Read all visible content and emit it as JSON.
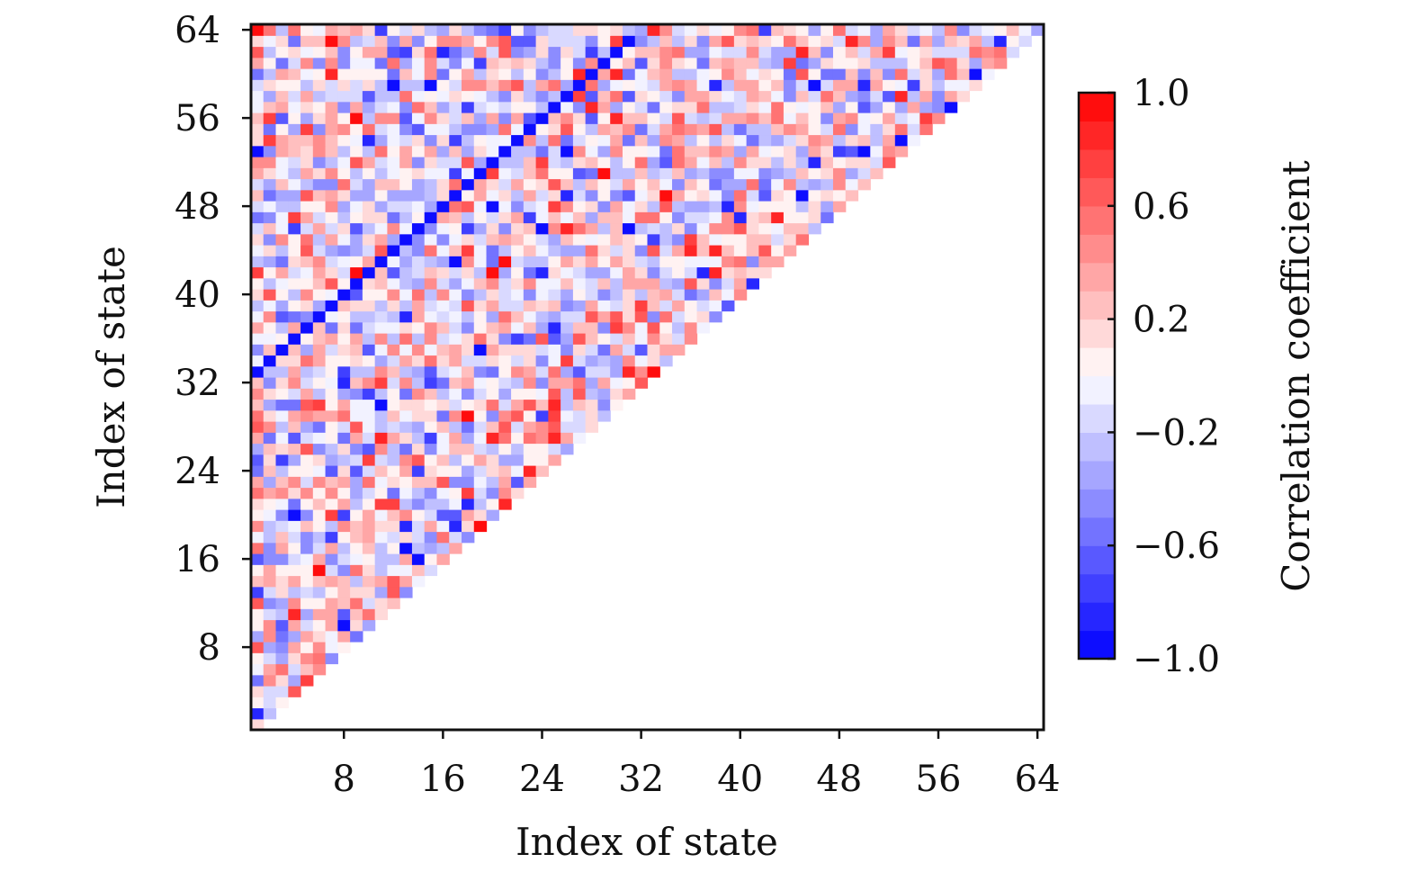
{
  "chart_data": {
    "type": "heatmap",
    "title": "",
    "xlabel": "Index of state",
    "ylabel": "Index of state",
    "n": 64,
    "xlim": [
      0.5,
      64.5
    ],
    "ylim": [
      0.5,
      64.5
    ],
    "x_ticks": [
      8,
      16,
      24,
      32,
      40,
      48,
      56,
      64
    ],
    "y_ticks": [
      8,
      16,
      24,
      32,
      40,
      48,
      56,
      64
    ],
    "x_tick_labels": [
      "8",
      "16",
      "24",
      "32",
      "40",
      "48",
      "56",
      "64"
    ],
    "y_tick_labels": [
      "8",
      "16",
      "24",
      "32",
      "40",
      "48",
      "56",
      "64"
    ],
    "mask": "upper-left triangle shown (row index ≥ column index)",
    "diagonal": {
      "description": "strong negative correlation line",
      "from": [
        1,
        33
      ],
      "to": [
        31,
        63
      ],
      "value": -1.0
    },
    "value_seed": 20240611,
    "colorbar": {
      "label": "Correlation coefficient",
      "min": -1.0,
      "max": 1.0,
      "levels": 20,
      "tick_values": [
        1.0,
        0.6,
        0.2,
        -0.2,
        -0.6,
        -1.0
      ],
      "tick_labels": [
        "1.0",
        "0.6",
        "0.2",
        "−0.2",
        "−0.6",
        "−1.0"
      ],
      "colormap": [
        "#0000ff",
        "#ffffff",
        "#ff0000"
      ]
    }
  }
}
